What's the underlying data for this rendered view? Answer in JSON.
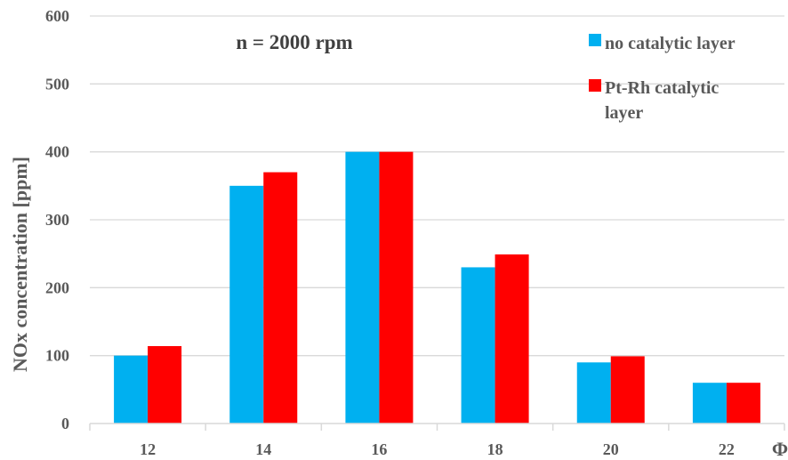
{
  "chart_data": {
    "type": "bar",
    "categories": [
      "12",
      "14",
      "16",
      "18",
      "20",
      "22"
    ],
    "series": [
      {
        "name": "no catalytic layer",
        "color": "#00B0F0",
        "values": [
          100,
          350,
          400,
          230,
          90,
          60
        ]
      },
      {
        "name": "Pt-Rh catalytic layer",
        "color": "#FF0000",
        "values": [
          114,
          370,
          400,
          249,
          99,
          60
        ]
      }
    ],
    "title": "",
    "annotation": "n = 2000 rpm",
    "xlabel": "Φ",
    "ylabel": "NOx concentration [ppm]",
    "ylim": [
      0,
      600
    ],
    "yticks": [
      0,
      100,
      200,
      300,
      400,
      500,
      600
    ],
    "grid": true,
    "legend_position": "top-right",
    "legend_lines": [
      [
        "no catalytic layer"
      ],
      [
        "Pt-Rh catalytic",
        "layer"
      ]
    ]
  }
}
